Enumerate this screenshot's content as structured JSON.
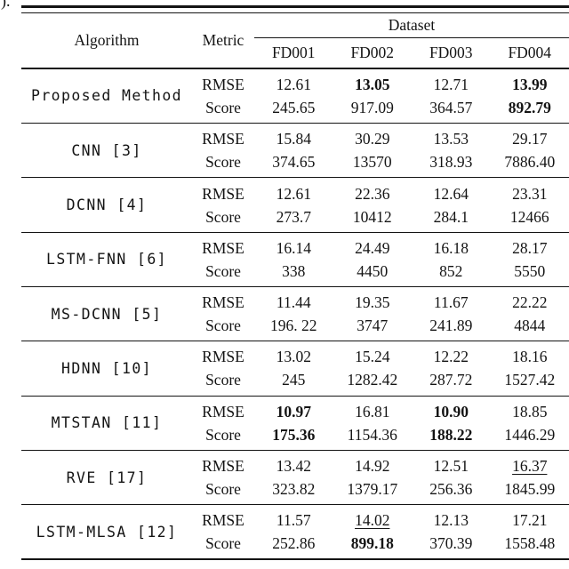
{
  "page": {
    "caption_fragment": ")."
  },
  "table": {
    "header": {
      "algorithm": "Algorithm",
      "metric": "Metric",
      "dataset_group": "Dataset",
      "datasets": [
        "FD001",
        "FD002",
        "FD003",
        "FD004"
      ]
    },
    "metric_labels": [
      "RMSE",
      "Score"
    ],
    "rows": [
      {
        "name": "Proposed Method",
        "rmse": [
          "12.61",
          "13.05",
          "12.71",
          "13.99"
        ],
        "score": [
          "245.65",
          "917.09",
          "364.57",
          "892.79"
        ]
      },
      {
        "name": "CNN [3]",
        "rmse": [
          "15.84",
          "30.29",
          "13.53",
          "29.17"
        ],
        "score": [
          "374.65",
          "13570",
          "318.93",
          "7886.40"
        ]
      },
      {
        "name": "DCNN [4]",
        "rmse": [
          "12.61",
          "22.36",
          "12.64",
          "23.31"
        ],
        "score": [
          "273.7",
          "10412",
          "284.1",
          "12466"
        ]
      },
      {
        "name": "LSTM-FNN [6]",
        "rmse": [
          "16.14",
          "24.49",
          "16.18",
          "28.17"
        ],
        "score": [
          "338",
          "4450",
          "852",
          "5550"
        ]
      },
      {
        "name": "MS-DCNN [5]",
        "rmse": [
          "11.44",
          "19.35",
          "11.67",
          "22.22"
        ],
        "score": [
          "196. 22",
          "3747",
          "241.89",
          "4844"
        ]
      },
      {
        "name": "HDNN [10]",
        "rmse": [
          "13.02",
          "15.24",
          "12.22",
          "18.16"
        ],
        "score": [
          "245",
          "1282.42",
          "287.72",
          "1527.42"
        ]
      },
      {
        "name": "MTSTAN [11]",
        "rmse": [
          "10.97",
          "16.81",
          "10.90",
          "18.85"
        ],
        "score": [
          "175.36",
          "1154.36",
          "188.22",
          "1446.29"
        ]
      },
      {
        "name": "RVE [17]",
        "rmse": [
          "13.42",
          "14.92",
          "12.51",
          "16.37"
        ],
        "score": [
          "323.82",
          "1379.17",
          "256.36",
          "1845.99"
        ]
      },
      {
        "name": "LSTM-MLSA [12]",
        "rmse": [
          "11.57",
          "14.02",
          "12.13",
          "17.21"
        ],
        "score": [
          "252.86",
          "899.18",
          "370.39",
          "1558.48"
        ]
      }
    ],
    "emphasis": {
      "bold_cells": [
        "rows.0.rmse.1",
        "rows.0.rmse.3",
        "rows.0.score.3",
        "rows.6.rmse.0",
        "rows.6.rmse.2",
        "rows.6.score.0",
        "rows.6.score.2",
        "rows.8.score.1"
      ],
      "underline_cells": [
        "rows.7.rmse.3",
        "rows.8.rmse.1"
      ]
    }
  }
}
